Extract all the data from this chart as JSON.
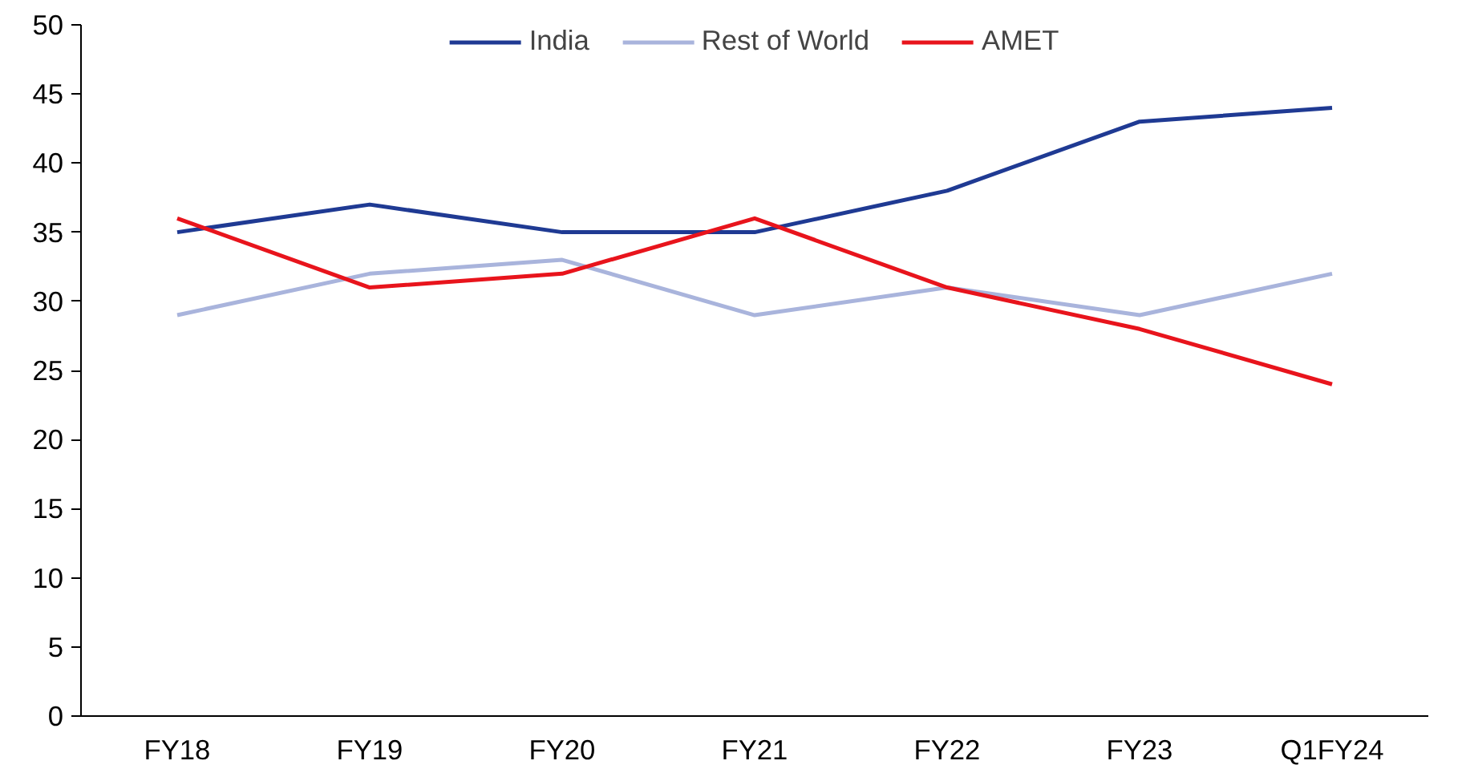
{
  "chart_data": {
    "type": "line",
    "categories": [
      "FY18",
      "FY19",
      "FY20",
      "FY21",
      "FY22",
      "FY23",
      "Q1FY24"
    ],
    "series": [
      {
        "name": "India",
        "color": "#1f3a93",
        "values": [
          35,
          37,
          35,
          35,
          38,
          43,
          44
        ]
      },
      {
        "name": "Rest of World",
        "color": "#a9b4dc",
        "values": [
          29,
          32,
          33,
          29,
          31,
          29,
          32
        ]
      },
      {
        "name": "AMET",
        "color": "#e8141c",
        "values": [
          36,
          31,
          32,
          36,
          31,
          28,
          24
        ]
      }
    ],
    "ylim": [
      0,
      50
    ],
    "yticks": [
      0,
      5,
      10,
      15,
      20,
      25,
      30,
      35,
      40,
      45,
      50
    ],
    "grid": false,
    "legend": "top",
    "marker": "none",
    "line_style": "solid"
  }
}
